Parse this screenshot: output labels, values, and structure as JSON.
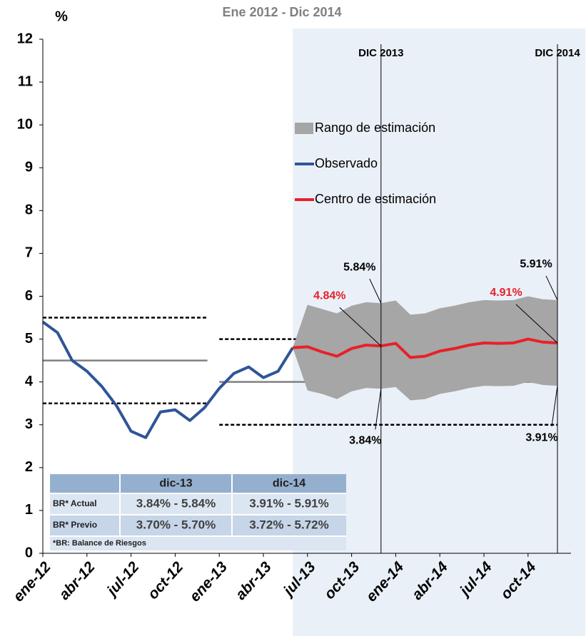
{
  "chart_data": {
    "type": "fan",
    "title": "Ene 2012 - Dic 2014",
    "ylabel": "%",
    "categories": [
      "ene-12",
      null,
      null,
      "abr-12",
      null,
      null,
      "jul-12",
      null,
      null,
      "oct-12",
      null,
      null,
      "ene-13",
      null,
      null,
      "abr-13",
      null,
      null,
      "jul-13",
      null,
      null,
      "oct-13",
      null,
      null,
      "ene-14",
      null,
      null,
      "abr-14",
      null,
      null,
      "jul-14",
      null,
      null,
      "oct-14",
      null,
      null
    ],
    "ylim": [
      0,
      12
    ],
    "yticks": [
      0,
      1,
      2,
      3,
      4,
      5,
      6,
      7,
      8,
      9,
      10,
      11,
      12
    ],
    "forecast_start": 17,
    "series": [
      {
        "name": "Rango de estimación",
        "kind": "band",
        "color": "#a6a6a6",
        "values": [
          null,
          null,
          null,
          null,
          null,
          null,
          null,
          null,
          null,
          null,
          null,
          null,
          null,
          null,
          null,
          null,
          null,
          4.8,
          5.8,
          5.7,
          5.6,
          5.78,
          5.86,
          5.84,
          5.9,
          5.57,
          5.6,
          5.72,
          5.78,
          5.86,
          5.91,
          5.9,
          5.91,
          6.0,
          5.93,
          5.91
        ],
        "value_labels": [
          null,
          null,
          null,
          null,
          null,
          null,
          null,
          null,
          null,
          null,
          null,
          null,
          null,
          null,
          null,
          null,
          null,
          null,
          null,
          null,
          null,
          null,
          null,
          "5.84%",
          null,
          null,
          null,
          null,
          null,
          null,
          null,
          null,
          null,
          null,
          null,
          "5.91%"
        ],
        "lower_values": [
          null,
          null,
          null,
          null,
          null,
          null,
          null,
          null,
          null,
          null,
          null,
          null,
          null,
          null,
          null,
          null,
          null,
          4.8,
          3.8,
          3.72,
          3.6,
          3.78,
          3.86,
          3.84,
          3.88,
          3.57,
          3.6,
          3.72,
          3.78,
          3.86,
          3.91,
          3.9,
          3.91,
          4.0,
          3.93,
          3.91
        ],
        "lower_value_labels": [
          null,
          null,
          null,
          null,
          null,
          null,
          null,
          null,
          null,
          null,
          null,
          null,
          null,
          null,
          null,
          null,
          null,
          null,
          null,
          null,
          null,
          null,
          null,
          "3.84%",
          null,
          null,
          null,
          null,
          null,
          null,
          null,
          null,
          null,
          null,
          null,
          "3.91%"
        ]
      },
      {
        "name": "Observado",
        "kind": "line",
        "color": "#2f5597",
        "values": [
          5.4,
          5.15,
          4.5,
          4.25,
          3.9,
          3.45,
          2.85,
          2.7,
          3.3,
          3.35,
          3.1,
          3.4,
          3.85,
          4.2,
          4.35,
          4.1,
          4.25,
          4.8,
          null,
          null,
          null,
          null,
          null,
          null,
          null,
          null,
          null,
          null,
          null,
          null,
          null,
          null,
          null,
          null,
          null,
          null
        ]
      },
      {
        "name": "Centro de estimación",
        "kind": "line",
        "color": "#e8202a",
        "values": [
          null,
          null,
          null,
          null,
          null,
          null,
          null,
          null,
          null,
          null,
          null,
          null,
          null,
          null,
          null,
          null,
          null,
          4.8,
          4.82,
          4.7,
          4.6,
          4.78,
          4.86,
          4.84,
          4.9,
          4.57,
          4.6,
          4.72,
          4.78,
          4.86,
          4.91,
          4.9,
          4.91,
          5.0,
          4.93,
          4.91
        ],
        "value_labels": [
          null,
          null,
          null,
          null,
          null,
          null,
          null,
          null,
          null,
          null,
          null,
          null,
          null,
          null,
          null,
          null,
          null,
          null,
          null,
          null,
          null,
          null,
          null,
          "4.84%",
          null,
          null,
          null,
          null,
          null,
          null,
          null,
          null,
          null,
          null,
          null,
          "4.91%"
        ]
      }
    ],
    "reference_lines": [
      {
        "style": "dashed",
        "color": "#000000",
        "values": [
          5.5,
          5.5,
          5.5,
          5.5,
          5.5,
          5.5,
          5.5,
          5.5,
          5.5,
          5.5,
          5.5,
          5.5,
          null,
          null,
          null,
          null,
          null,
          null,
          null,
          null,
          null,
          null,
          null,
          null,
          null,
          null,
          null,
          null,
          null,
          null,
          null,
          null,
          null,
          null,
          null,
          null
        ]
      },
      {
        "style": "solid",
        "color": "#808080",
        "values": [
          4.5,
          4.5,
          4.5,
          4.5,
          4.5,
          4.5,
          4.5,
          4.5,
          4.5,
          4.5,
          4.5,
          4.5,
          null,
          null,
          null,
          null,
          null,
          null,
          null,
          null,
          null,
          null,
          null,
          null,
          null,
          null,
          null,
          null,
          null,
          null,
          null,
          null,
          null,
          null,
          null,
          null
        ]
      },
      {
        "style": "dashed",
        "color": "#000000",
        "values": [
          3.5,
          3.5,
          3.5,
          3.5,
          3.5,
          3.5,
          3.5,
          3.5,
          3.5,
          3.5,
          3.5,
          3.5,
          null,
          null,
          null,
          null,
          null,
          null,
          null,
          null,
          null,
          null,
          null,
          null,
          null,
          null,
          null,
          null,
          null,
          null,
          null,
          null,
          null,
          null,
          null,
          null
        ]
      },
      {
        "style": "dashed",
        "color": "#000000",
        "values": [
          null,
          null,
          null,
          null,
          null,
          null,
          null,
          null,
          null,
          null,
          null,
          null,
          5,
          5,
          5,
          5,
          5,
          5,
          5,
          5,
          5,
          5,
          5,
          5,
          5,
          5,
          5,
          5,
          5,
          5,
          5,
          5,
          5,
          5,
          5,
          5
        ]
      },
      {
        "style": "solid",
        "color": "#808080",
        "values": [
          null,
          null,
          null,
          null,
          null,
          null,
          null,
          null,
          null,
          null,
          null,
          null,
          4,
          4,
          4,
          4,
          4,
          4,
          4,
          4,
          4,
          4,
          4,
          4,
          4,
          4,
          4,
          4,
          4,
          4,
          4,
          4,
          4,
          4,
          4,
          4
        ]
      },
      {
        "style": "dashed",
        "color": "#000000",
        "values": [
          null,
          null,
          null,
          null,
          null,
          null,
          null,
          null,
          null,
          null,
          null,
          null,
          3,
          3,
          3,
          3,
          3,
          3,
          3,
          3,
          3,
          3,
          3,
          3,
          3,
          3,
          3,
          3,
          3,
          3,
          3,
          3,
          3,
          3,
          3,
          3
        ]
      }
    ],
    "vlines": [
      {
        "index": 23,
        "label": "DIC 2013"
      },
      {
        "index": 35,
        "label": "DIC 2014"
      }
    ]
  },
  "table": {
    "header": [
      "dic-13",
      "dic-14"
    ],
    "rows": [
      [
        "BR* Actual",
        "3.84% - 5.84%",
        "3.91% - 5.91%"
      ],
      [
        "BR* Previo",
        "3.70% - 5.70%",
        "3.72% - 5.72%"
      ]
    ],
    "footnote": "*BR: Balance de Riesgos"
  }
}
